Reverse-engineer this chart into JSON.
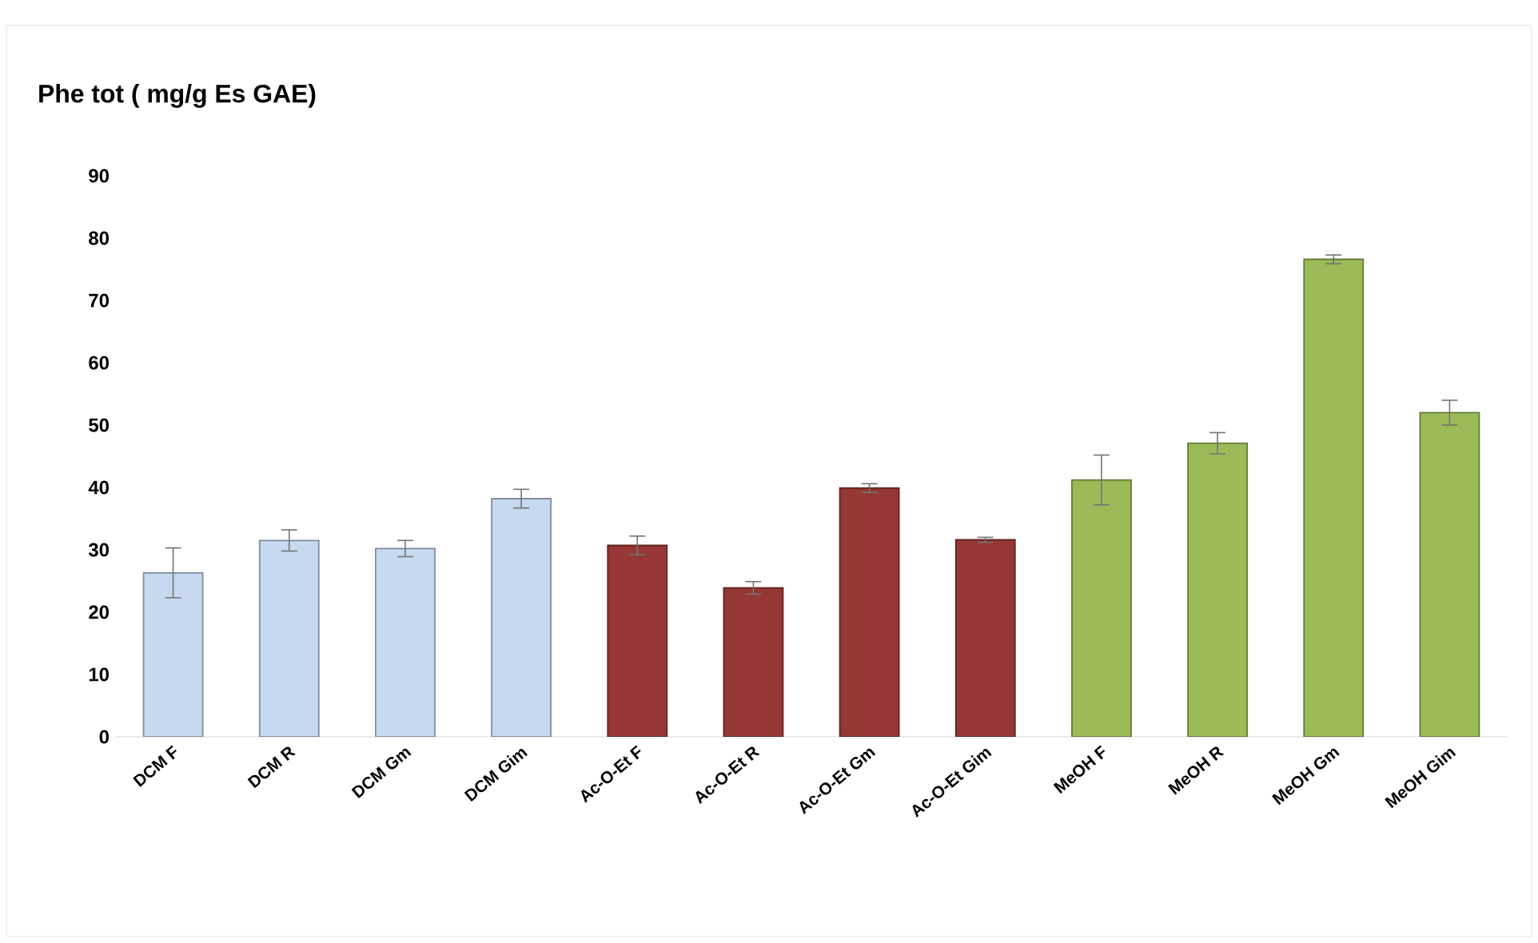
{
  "chart_data": {
    "type": "bar",
    "title": "Phe tot ( mg/g Es GAE)",
    "categories": [
      "DCM F",
      "DCM R",
      "DCM Gm",
      "DCM Gim",
      "Ac-O-Et F",
      "Ac-O-Et  R",
      "Ac-O-Et Gm",
      "Ac-O-Et Gim",
      "MeOH F",
      "MeOH R",
      "MeOH Gm",
      "MeOH Gim"
    ],
    "values": [
      26.3,
      31.5,
      30.2,
      38.2,
      30.7,
      23.9,
      39.9,
      31.6,
      41.2,
      47.1,
      76.6,
      52.0
    ],
    "errors": [
      4,
      1.7,
      1.3,
      1.5,
      1.5,
      1,
      0.7,
      0.4,
      4,
      1.7,
      0.7,
      2
    ],
    "colors": [
      "#c6d9f1",
      "#c6d9f1",
      "#c6d9f1",
      "#c6d9f1",
      "#953735",
      "#953735",
      "#953735",
      "#953735",
      "#9bbb59",
      "#9bbb59",
      "#9bbb59",
      "#9bbb59"
    ],
    "ylim": [
      0,
      90
    ],
    "yticks": [
      0,
      10,
      20,
      30,
      40,
      50,
      60,
      70,
      80,
      90
    ],
    "grid": false
  }
}
